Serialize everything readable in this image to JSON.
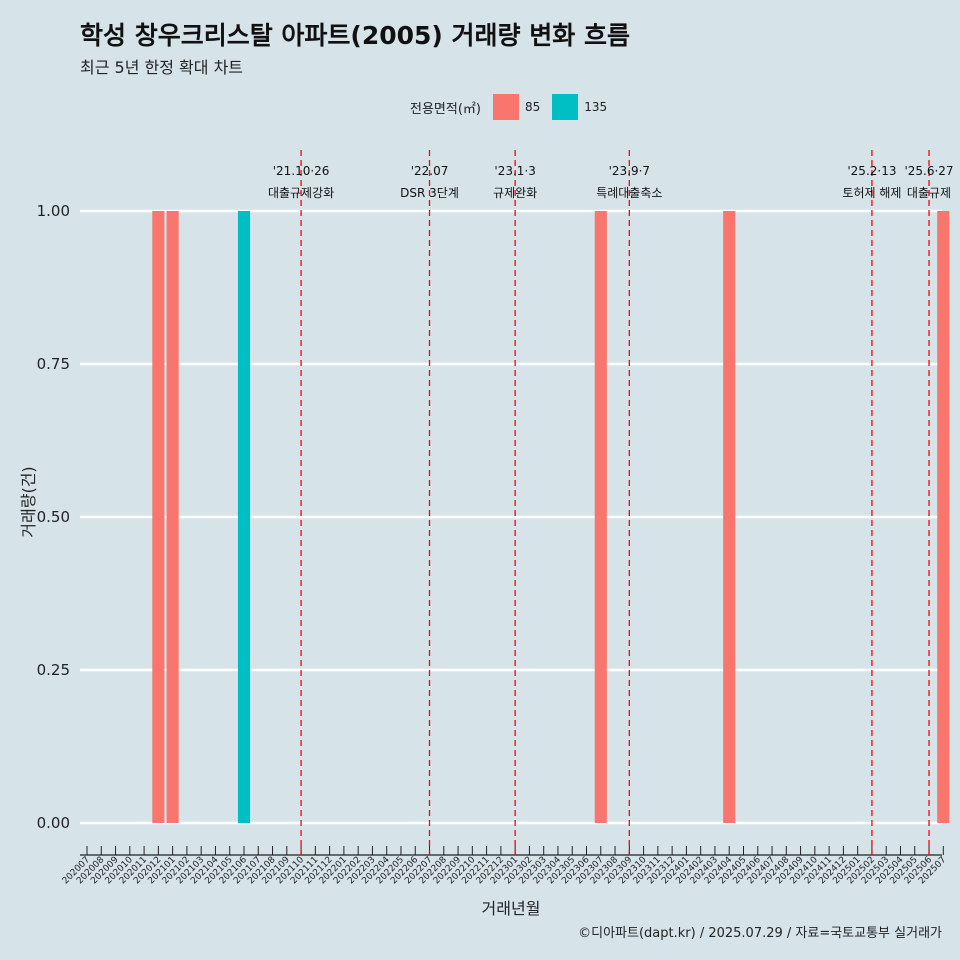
{
  "title": "학성 창우크리스탈 아파트(2005) 거래량 변화 흐름",
  "subtitle": "최근 5년 한정 확대 차트",
  "legend": {
    "title": "전용면적(㎡)",
    "items": [
      {
        "label": "85",
        "color": "#f8766d"
      },
      {
        "label": "135",
        "color": "#00bfc4"
      }
    ]
  },
  "caption": "©디아파트(dapt.kr) / 2025.07.29 / 자료=국토교통부 실거래가",
  "chart_data": {
    "type": "bar",
    "xlabel": "거래년월",
    "ylabel": "거래량(건)",
    "ylim": [
      0,
      1
    ],
    "yticks": [
      "0.00",
      "0.25",
      "0.50",
      "0.75",
      "1.00"
    ],
    "categories": [
      "202007",
      "202008",
      "202009",
      "202010",
      "202011",
      "202012",
      "202101",
      "202102",
      "202103",
      "202104",
      "202105",
      "202106",
      "202107",
      "202108",
      "202109",
      "202110",
      "202111",
      "202112",
      "202201",
      "202202",
      "202203",
      "202204",
      "202205",
      "202206",
      "202207",
      "202208",
      "202209",
      "202210",
      "202211",
      "202212",
      "202301",
      "202302",
      "202303",
      "202304",
      "202305",
      "202306",
      "202307",
      "202308",
      "202309",
      "202310",
      "202311",
      "202312",
      "202401",
      "202402",
      "202403",
      "202404",
      "202405",
      "202406",
      "202407",
      "202408",
      "202409",
      "202410",
      "202411",
      "202412",
      "202501",
      "202502",
      "202503",
      "202504",
      "202505",
      "202506",
      "202507"
    ],
    "bars": [
      {
        "x": "202012",
        "area": "85",
        "value": 1
      },
      {
        "x": "202101",
        "area": "85",
        "value": 1
      },
      {
        "x": "202106",
        "area": "135",
        "value": 1
      },
      {
        "x": "202307",
        "area": "85",
        "value": 1
      },
      {
        "x": "202404",
        "area": "85",
        "value": 1
      },
      {
        "x": "202507",
        "area": "85",
        "value": 1
      }
    ],
    "events": [
      {
        "x": "202110",
        "date": "'21.10·26",
        "text": "대출규제강화"
      },
      {
        "x": "202207",
        "date": "'22.07",
        "text": "DSR 3단계"
      },
      {
        "x": "202301",
        "date": "'23.1·3",
        "text": "규제완화"
      },
      {
        "x": "202309",
        "date": "'23.9·7",
        "text": "특례대출축소"
      },
      {
        "x": "202502",
        "date": "'25.2·13",
        "text": "토허제 해제"
      },
      {
        "x": "202506",
        "date": "'25.6·27",
        "text": "대출규제"
      }
    ],
    "event_line_color": "#ff0000"
  }
}
